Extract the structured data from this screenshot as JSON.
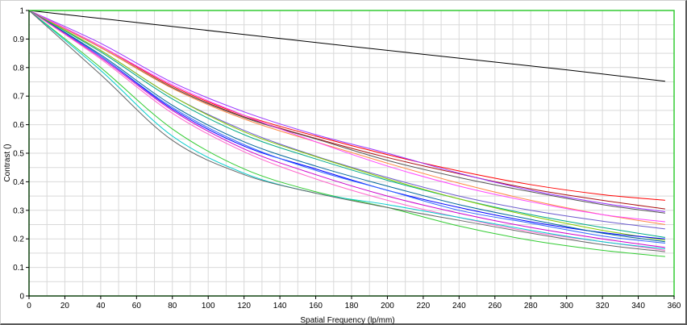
{
  "chart_data": {
    "type": "line",
    "title": "",
    "xlabel": "Spatial Frequency (lp/mm)",
    "ylabel": "Contrast ()",
    "xlim": [
      0,
      360
    ],
    "ylim": [
      0,
      1
    ],
    "xticks": [
      "0",
      "20",
      "40",
      "60",
      "80",
      "100",
      "120",
      "140",
      "160",
      "180",
      "200",
      "220",
      "240",
      "260",
      "280",
      "300",
      "320",
      "340",
      "360"
    ],
    "yticks": [
      "0",
      "0.1",
      "0.2",
      "0.3",
      "0.4",
      "0.5",
      "0.6",
      "0.7",
      "0.8",
      "0.9",
      "1"
    ],
    "grid": true,
    "legend": "none",
    "plot_border_color": "#33cc33",
    "grid_color": "#d9d9d9",
    "series": [
      {
        "color": "#000000",
        "x": [
          0,
          60,
          120,
          180,
          240,
          300,
          355
        ],
        "y": [
          1.0,
          0.958,
          0.916,
          0.874,
          0.833,
          0.792,
          0.752
        ]
      },
      {
        "color": "#ff0000",
        "x": [
          0,
          40,
          80,
          120,
          160,
          200,
          240,
          280,
          320,
          355
        ],
        "y": [
          1.0,
          0.875,
          0.735,
          0.633,
          0.56,
          0.495,
          0.438,
          0.39,
          0.355,
          0.335
        ]
      },
      {
        "color": "#aa1111",
        "x": [
          0,
          40,
          80,
          120,
          160,
          200,
          240,
          280,
          320,
          355
        ],
        "y": [
          1.0,
          0.87,
          0.73,
          0.628,
          0.552,
          0.485,
          0.428,
          0.375,
          0.335,
          0.305
        ]
      },
      {
        "color": "#9933ff",
        "x": [
          0,
          40,
          80,
          120,
          160,
          200,
          240,
          280,
          320,
          355
        ],
        "y": [
          1.0,
          0.885,
          0.748,
          0.645,
          0.565,
          0.5,
          0.43,
          0.37,
          0.325,
          0.295
        ]
      },
      {
        "color": "#555555",
        "x": [
          0,
          40,
          80,
          120,
          160,
          200,
          240,
          280,
          320,
          355
        ],
        "y": [
          1.0,
          0.87,
          0.73,
          0.625,
          0.55,
          0.475,
          0.415,
          0.365,
          0.32,
          0.29
        ]
      },
      {
        "color": "#ff8844",
        "x": [
          0,
          40,
          80,
          120,
          160,
          200,
          240,
          280,
          320,
          355
        ],
        "y": [
          1.0,
          0.87,
          0.727,
          0.62,
          0.54,
          0.465,
          0.395,
          0.335,
          0.285,
          0.25
        ]
      },
      {
        "color": "#ff44ff",
        "x": [
          0,
          40,
          80,
          120,
          160,
          200,
          240,
          280,
          320,
          355
        ],
        "y": [
          1.0,
          0.875,
          0.74,
          0.633,
          0.54,
          0.455,
          0.385,
          0.33,
          0.285,
          0.26
        ]
      },
      {
        "color": "#6a5acd",
        "x": [
          0,
          40,
          80,
          120,
          160,
          200,
          240,
          280,
          320,
          355
        ],
        "y": [
          1.0,
          0.86,
          0.7,
          0.58,
          0.49,
          0.415,
          0.35,
          0.3,
          0.262,
          0.235
        ]
      },
      {
        "color": "#00aa88",
        "x": [
          0,
          40,
          80,
          120,
          160,
          200,
          240,
          280,
          320,
          355
        ],
        "y": [
          1.0,
          0.855,
          0.69,
          0.565,
          0.48,
          0.405,
          0.34,
          0.285,
          0.24,
          0.205
        ]
      },
      {
        "color": "#88cc00",
        "x": [
          0,
          40,
          80,
          120,
          160,
          200,
          240,
          280,
          320,
          355
        ],
        "y": [
          1.0,
          0.86,
          0.7,
          0.575,
          0.488,
          0.41,
          0.34,
          0.28,
          0.23,
          0.195
        ]
      },
      {
        "color": "#0000ff",
        "x": [
          0,
          40,
          80,
          120,
          160,
          200,
          240,
          280,
          320,
          355
        ],
        "y": [
          1.0,
          0.84,
          0.655,
          0.525,
          0.445,
          0.37,
          0.31,
          0.26,
          0.222,
          0.2
        ]
      },
      {
        "color": "#3366ff",
        "x": [
          0,
          40,
          80,
          120,
          160,
          200,
          240,
          280,
          320,
          355
        ],
        "y": [
          1.0,
          0.84,
          0.66,
          0.53,
          0.44,
          0.37,
          0.3,
          0.255,
          0.21,
          0.185
        ]
      },
      {
        "color": "#006699",
        "x": [
          0,
          40,
          80,
          120,
          160,
          200,
          240,
          280,
          320,
          355
        ],
        "y": [
          1.0,
          0.845,
          0.668,
          0.54,
          0.455,
          0.385,
          0.32,
          0.268,
          0.22,
          0.19
        ]
      },
      {
        "color": "#cc00cc",
        "x": [
          0,
          40,
          80,
          120,
          160,
          200,
          240,
          280,
          320,
          355
        ],
        "y": [
          1.0,
          0.835,
          0.65,
          0.515,
          0.425,
          0.35,
          0.29,
          0.24,
          0.2,
          0.17
        ]
      },
      {
        "color": "#ff66cc",
        "x": [
          0,
          40,
          80,
          120,
          160,
          200,
          240,
          280,
          320,
          355
        ],
        "y": [
          1.0,
          0.83,
          0.64,
          0.505,
          0.41,
          0.335,
          0.275,
          0.225,
          0.19,
          0.16
        ]
      },
      {
        "color": "#33cc33",
        "x": [
          0,
          40,
          80,
          120,
          160,
          200,
          240,
          280,
          320,
          355
        ],
        "y": [
          1.0,
          0.8,
          0.585,
          0.445,
          0.365,
          0.31,
          0.245,
          0.195,
          0.16,
          0.138
        ]
      },
      {
        "color": "#00cccc",
        "x": [
          0,
          40,
          80,
          120,
          160,
          200,
          240,
          280,
          320,
          355
        ],
        "y": [
          1.0,
          0.79,
          0.56,
          0.43,
          0.36,
          0.32,
          0.275,
          0.23,
          0.19,
          0.165
        ]
      },
      {
        "color": "#666666",
        "x": [
          0,
          40,
          80,
          120,
          160,
          200,
          240,
          280,
          320,
          355
        ],
        "y": [
          1.0,
          0.775,
          0.545,
          0.425,
          0.36,
          0.31,
          0.265,
          0.22,
          0.18,
          0.155
        ]
      }
    ]
  }
}
